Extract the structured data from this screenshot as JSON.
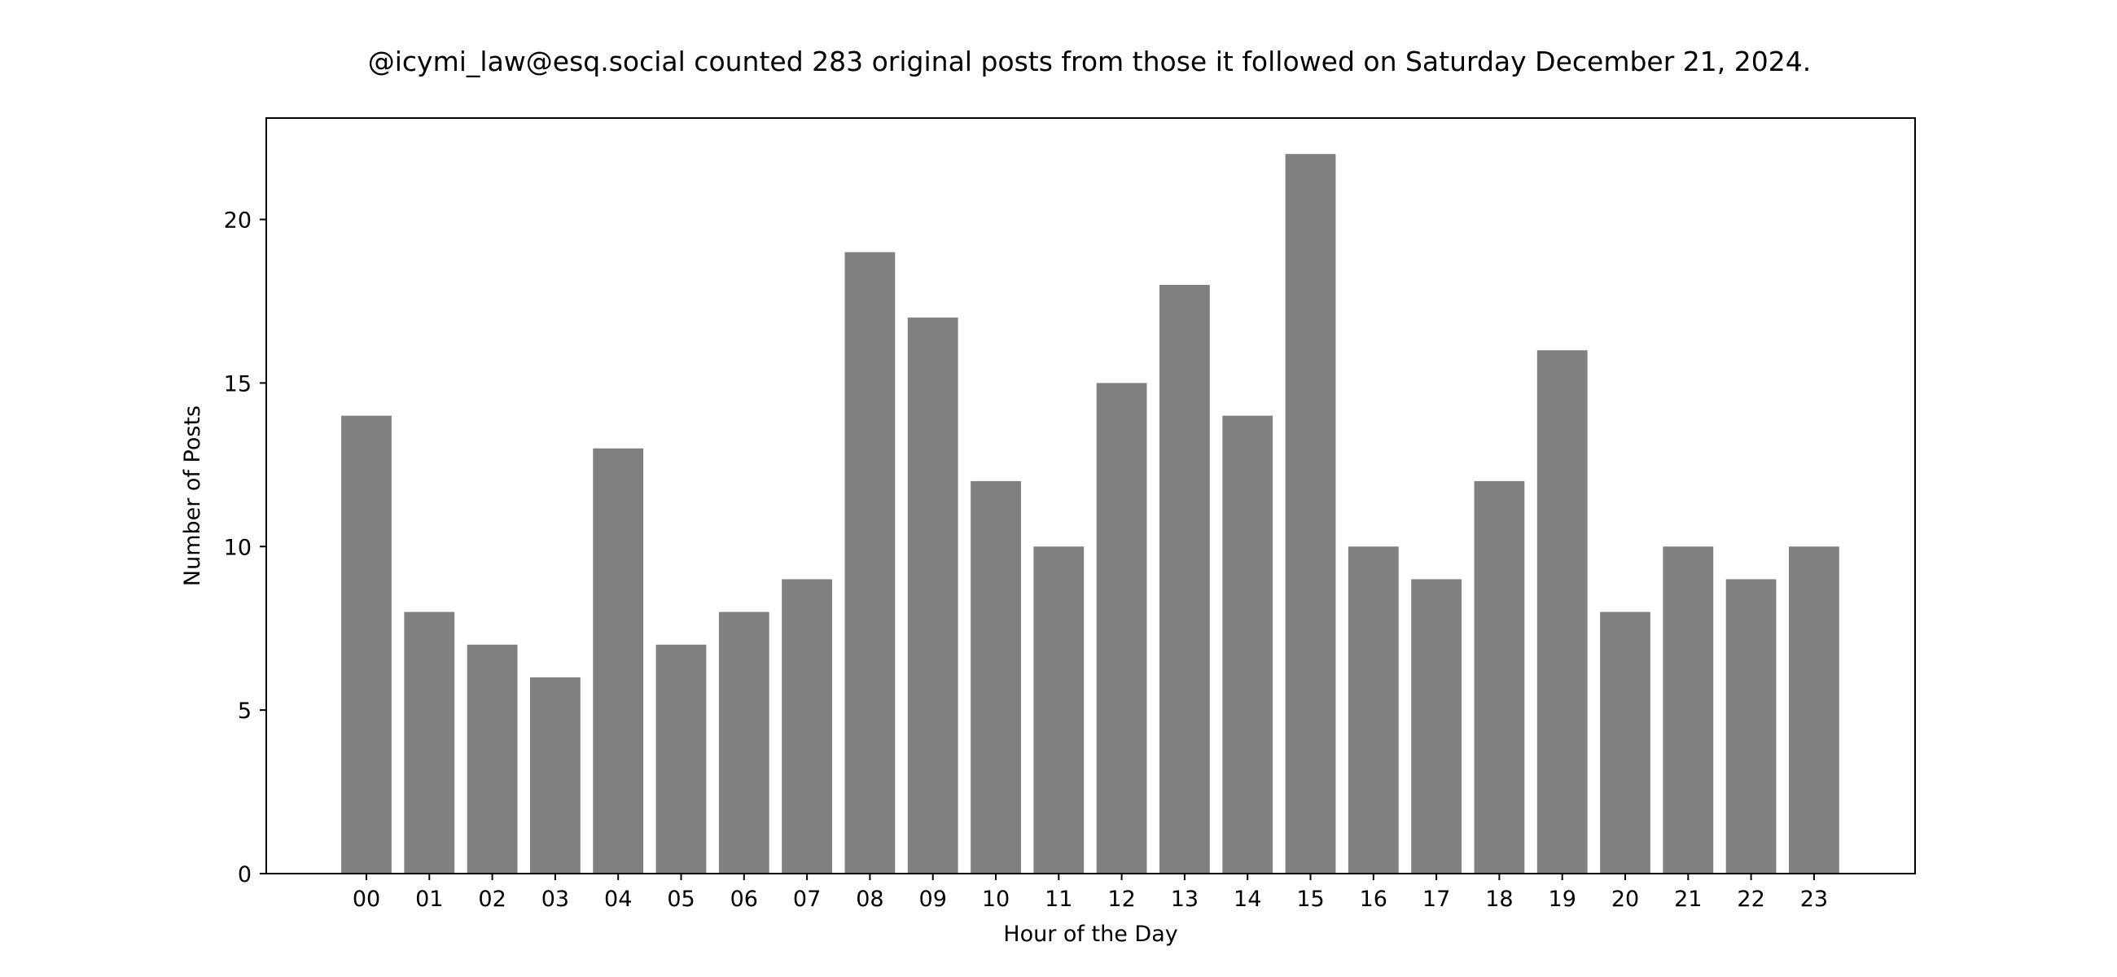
{
  "chart_data": {
    "type": "bar",
    "title": "@icymi_law@esq.social counted 283 original posts from those it followed on Saturday December 21, 2024.",
    "xlabel": "Hour of the Day",
    "ylabel": "Number of Posts",
    "categories": [
      "00",
      "01",
      "02",
      "03",
      "04",
      "05",
      "06",
      "07",
      "08",
      "09",
      "10",
      "11",
      "12",
      "13",
      "14",
      "15",
      "16",
      "17",
      "18",
      "19",
      "20",
      "21",
      "22",
      "23"
    ],
    "values": [
      14,
      8,
      7,
      6,
      13,
      7,
      8,
      9,
      19,
      17,
      12,
      10,
      15,
      18,
      14,
      22,
      10,
      9,
      12,
      16,
      8,
      10,
      9,
      10
    ],
    "ylim": [
      0,
      23.1
    ],
    "yticks": [
      0,
      5,
      10,
      15,
      20
    ],
    "bar_color": "#808080",
    "grid": false,
    "legend": "none"
  }
}
